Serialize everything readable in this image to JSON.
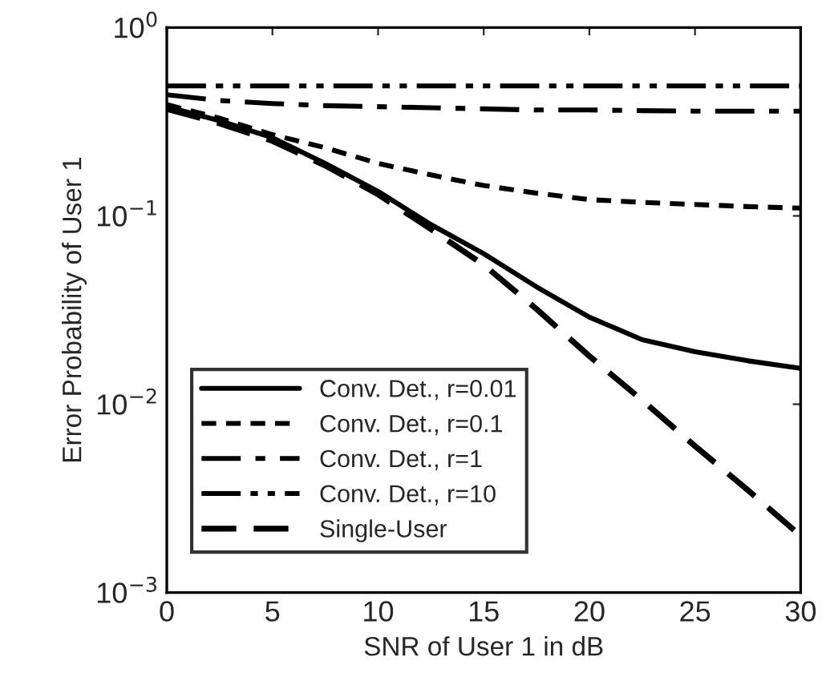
{
  "chart_data": {
    "type": "line",
    "xlabel": "SNR of User 1 in dB",
    "ylabel": "Error Probability of User 1",
    "log": "y",
    "xlim": [
      0,
      30
    ],
    "xticks": [
      0,
      5,
      10,
      15,
      20,
      25,
      30
    ],
    "ylim": [
      0.001,
      1
    ],
    "yticks": [
      {
        "value": 1,
        "label": "10$^{0}$"
      },
      {
        "value": 0.1,
        "label": "10$^{−1}$"
      },
      {
        "value": 0.01,
        "label": "10$^{−2}$"
      },
      {
        "value": 0.001,
        "label": "10$^{−3}$"
      }
    ],
    "x": [
      0,
      2.5,
      5,
      7.5,
      10,
      12.5,
      15,
      17.5,
      20,
      22.5,
      25,
      27.5,
      30
    ],
    "legend": "bottom left",
    "grid": false,
    "series": [
      {
        "name": "Conv. Det., r=0.01",
        "color": "#000000",
        "line_style": "solid",
        "values": [
          0.38,
          0.32,
          0.26,
          0.19,
          0.135,
          0.09,
          0.063,
          0.042,
          0.029,
          0.022,
          0.019,
          0.017,
          0.0155
        ]
      },
      {
        "name": "Conv. Det., r=0.1",
        "color": "#000000",
        "line_style": "dotted",
        "values": [
          0.39,
          0.33,
          0.27,
          0.23,
          0.19,
          0.165,
          0.145,
          0.132,
          0.122,
          0.118,
          0.115,
          0.112,
          0.11
        ]
      },
      {
        "name": "Conv. Det., r=1",
        "color": "#000000",
        "line_style": "dashdot",
        "values": [
          0.44,
          0.41,
          0.395,
          0.385,
          0.38,
          0.375,
          0.37,
          0.365,
          0.365,
          0.362,
          0.36,
          0.36,
          0.36
        ]
      },
      {
        "name": "Conv. Det., r=10",
        "color": "#000000",
        "line_style": "dashdotdot",
        "values": [
          0.49,
          0.49,
          0.49,
          0.49,
          0.49,
          0.49,
          0.49,
          0.49,
          0.49,
          0.49,
          0.49,
          0.49,
          0.49
        ]
      },
      {
        "name": "Single-User",
        "color": "#000000",
        "line_style": "dashed",
        "values": [
          0.37,
          0.31,
          0.25,
          0.185,
          0.13,
          0.085,
          0.055,
          0.032,
          0.018,
          0.0105,
          0.006,
          0.0035,
          0.002
        ]
      }
    ]
  }
}
